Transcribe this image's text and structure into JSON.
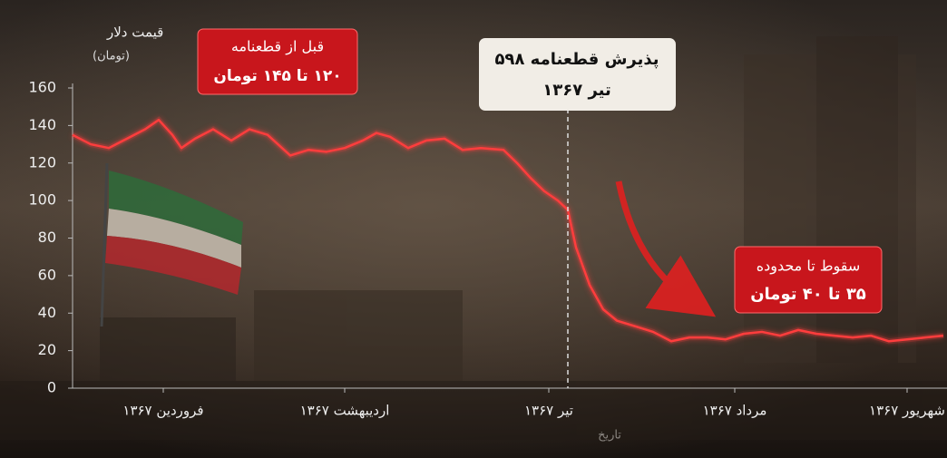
{
  "chart_data": {
    "type": "line",
    "y_label": [
      "قیمت دلار",
      "(تومان)"
    ],
    "x_label": "تاریخ",
    "x": [
      0,
      2,
      4,
      6,
      8,
      9.5,
      11,
      12,
      13.5,
      15.5,
      17.5,
      19.5,
      21.5,
      24,
      26,
      28,
      30,
      32,
      33.5,
      35,
      37,
      39,
      41,
      43,
      45,
      47.5,
      49,
      50.5,
      52,
      53.5,
      54.6,
      55.5,
      57,
      58.5,
      60,
      62,
      64,
      66,
      68,
      70,
      72,
      74,
      76,
      78,
      80,
      82,
      84,
      86,
      88,
      90,
      92,
      94,
      96
    ],
    "values": [
      135,
      130,
      128,
      133,
      138,
      143,
      135,
      128,
      133,
      138,
      132,
      138,
      135,
      124,
      127,
      126,
      128,
      132,
      136,
      134,
      128,
      132,
      133,
      127,
      128,
      127,
      120,
      112,
      105,
      100,
      95,
      75,
      55,
      42,
      36,
      33,
      30,
      25,
      27,
      27,
      26,
      29,
      30,
      28,
      31,
      29,
      28,
      27,
      28,
      25,
      26,
      27,
      28
    ],
    "color": "#ff3d3d",
    "xlim": [
      0,
      96.4
    ],
    "xticks": [
      {
        "value": 10,
        "label": "فروردین ۱۳۶۷"
      },
      {
        "value": 30,
        "label": "اردیبهشت ۱۳۶۷"
      },
      {
        "value": 52.5,
        "label": "تیر ۱۳۶۷"
      },
      {
        "value": 73,
        "label": "مرداد ۱۳۶۷"
      },
      {
        "value": 92,
        "label": "شهریور ۱۳۶۷"
      }
    ],
    "ylim": [
      0,
      160
    ],
    "yticks": [
      0,
      20,
      40,
      60,
      80,
      100,
      120,
      140,
      160
    ],
    "event_x": 54.6,
    "annotations": [
      {
        "lines": [
          "قبل از قطعنامه",
          "۱۲۰ تا ۱۴۵ تومان"
        ]
      },
      {
        "lines": [
          "پذیرش قطعنامه ۵۹۸",
          "تیر ۱۳۶۷"
        ]
      },
      {
        "lines": [
          "سقوط تا محدوده",
          "۳۵ تا ۴۰ تومان"
        ]
      }
    ]
  }
}
